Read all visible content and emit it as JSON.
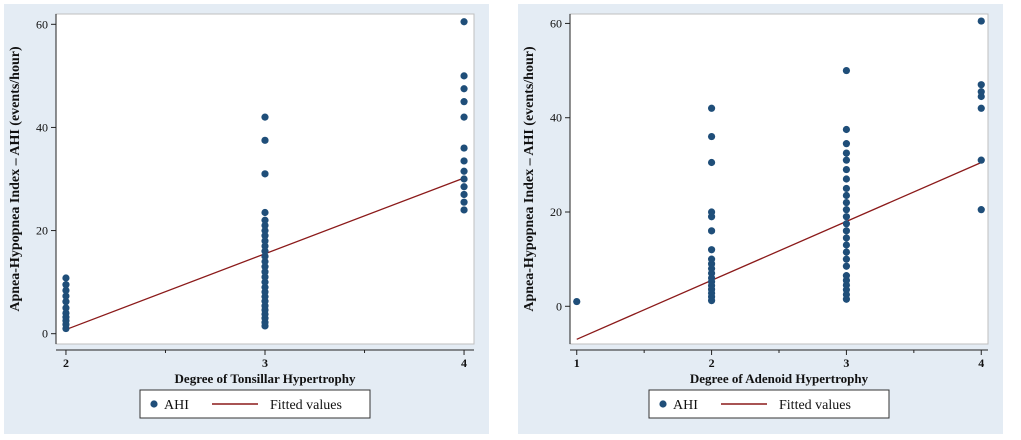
{
  "chart_data": [
    {
      "type": "scatter",
      "title": "",
      "xlabel": "Degree of Tonsillar Hypertrophy",
      "ylabel": "Apnea-Hypopnea  Index   – AHI (events/hour)",
      "xlim": [
        1.95,
        4.05
      ],
      "ylim": [
        -2,
        62
      ],
      "xticks": [
        "2",
        "3",
        "4"
      ],
      "xtick_values": [
        2,
        3,
        4
      ],
      "yticks": [
        "0",
        "20",
        "40",
        "60"
      ],
      "ytick_values": [
        0,
        20,
        40,
        60
      ],
      "grid": false,
      "legend": {
        "placement": "bottom",
        "entries": [
          "AHI",
          "Fitted values"
        ]
      },
      "colors": {
        "points": "#1f4e79",
        "line": "#8b1a1a",
        "frame_bg": "#e4ecf4"
      },
      "series": [
        {
          "name": "AHI",
          "kind": "points",
          "points": [
            [
              2,
              1
            ],
            [
              2,
              1.8
            ],
            [
              2,
              2.5
            ],
            [
              2,
              3.2
            ],
            [
              2,
              4
            ],
            [
              2,
              5
            ],
            [
              2,
              6.2
            ],
            [
              2,
              7.3
            ],
            [
              2,
              8.4
            ],
            [
              2,
              9.5
            ],
            [
              2,
              10.8
            ],
            [
              3,
              1.5
            ],
            [
              3,
              2.2
            ],
            [
              3,
              3
            ],
            [
              3,
              3.8
            ],
            [
              3,
              4.6
            ],
            [
              3,
              5.4
            ],
            [
              3,
              6.3
            ],
            [
              3,
              7.2
            ],
            [
              3,
              8.1
            ],
            [
              3,
              9
            ],
            [
              3,
              10
            ],
            [
              3,
              11
            ],
            [
              3,
              12
            ],
            [
              3,
              13
            ],
            [
              3,
              14
            ],
            [
              3,
              15
            ],
            [
              3,
              16
            ],
            [
              3,
              17
            ],
            [
              3,
              18
            ],
            [
              3,
              19
            ],
            [
              3,
              20
            ],
            [
              3,
              21
            ],
            [
              3,
              22
            ],
            [
              3,
              23.5
            ],
            [
              3,
              31
            ],
            [
              3,
              37.5
            ],
            [
              3,
              42
            ],
            [
              4,
              24
            ],
            [
              4,
              25.5
            ],
            [
              4,
              27
            ],
            [
              4,
              28.5
            ],
            [
              4,
              30
            ],
            [
              4,
              31.5
            ],
            [
              4,
              33.5
            ],
            [
              4,
              36
            ],
            [
              4,
              42
            ],
            [
              4,
              45
            ],
            [
              4,
              47.5
            ],
            [
              4,
              50
            ],
            [
              4,
              60.5
            ]
          ]
        },
        {
          "name": "Fitted values",
          "kind": "line",
          "points": [
            [
              2,
              0.8
            ],
            [
              4,
              30.2
            ]
          ]
        }
      ]
    },
    {
      "type": "scatter",
      "title": "",
      "xlabel": "Degree of Adenoid Hypertrophy",
      "ylabel": "Apnea-Hypopnea  Index   – AHI (events/hour)",
      "xlim": [
        0.95,
        4.05
      ],
      "ylim": [
        -8,
        62
      ],
      "xticks": [
        "1",
        "2",
        "3",
        "4"
      ],
      "xtick_values": [
        1,
        2,
        3,
        4
      ],
      "yticks": [
        "0",
        "20",
        "40",
        "60"
      ],
      "ytick_values": [
        0,
        20,
        40,
        60
      ],
      "grid": false,
      "legend": {
        "placement": "bottom",
        "entries": [
          "AHI",
          "Fitted values"
        ]
      },
      "colors": {
        "points": "#1f4e79",
        "line": "#8b1a1a",
        "frame_bg": "#e4ecf4"
      },
      "series": [
        {
          "name": "AHI",
          "kind": "points",
          "points": [
            [
              1,
              1
            ],
            [
              2,
              1.2
            ],
            [
              2,
              2
            ],
            [
              2,
              2.8
            ],
            [
              2,
              3.6
            ],
            [
              2,
              4.4
            ],
            [
              2,
              5.2
            ],
            [
              2,
              6
            ],
            [
              2,
              7
            ],
            [
              2,
              8
            ],
            [
              2,
              9
            ],
            [
              2,
              10
            ],
            [
              2,
              12
            ],
            [
              2,
              16
            ],
            [
              2,
              19
            ],
            [
              2,
              20
            ],
            [
              2,
              30.5
            ],
            [
              2,
              36
            ],
            [
              2,
              42
            ],
            [
              3,
              1.5
            ],
            [
              3,
              2.5
            ],
            [
              3,
              3.5
            ],
            [
              3,
              4.5
            ],
            [
              3,
              5.5
            ],
            [
              3,
              6.5
            ],
            [
              3,
              8.5
            ],
            [
              3,
              10
            ],
            [
              3,
              11.5
            ],
            [
              3,
              13
            ],
            [
              3,
              14.5
            ],
            [
              3,
              16
            ],
            [
              3,
              17.5
            ],
            [
              3,
              19
            ],
            [
              3,
              20.5
            ],
            [
              3,
              22
            ],
            [
              3,
              23.5
            ],
            [
              3,
              25
            ],
            [
              3,
              27
            ],
            [
              3,
              29
            ],
            [
              3,
              31
            ],
            [
              3,
              32.5
            ],
            [
              3,
              34.5
            ],
            [
              3,
              37.5
            ],
            [
              3,
              50
            ],
            [
              4,
              20.5
            ],
            [
              4,
              31
            ],
            [
              4,
              42
            ],
            [
              4,
              44.5
            ],
            [
              4,
              45.5
            ],
            [
              4,
              47
            ],
            [
              4,
              60.5
            ]
          ]
        },
        {
          "name": "Fitted values",
          "kind": "line",
          "points": [
            [
              1,
              -7
            ],
            [
              4,
              30.5
            ]
          ]
        }
      ]
    }
  ]
}
